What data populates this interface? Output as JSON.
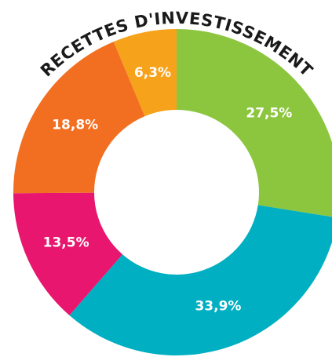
{
  "chart_data": {
    "type": "donut",
    "title": "RECETTES D'INVESTISSEMENT",
    "categories": [
      null,
      null,
      null,
      null,
      null
    ],
    "values": [
      27.5,
      33.9,
      13.5,
      18.8,
      6.3
    ],
    "value_labels": [
      "27,5%",
      "33,9%",
      "13,5%",
      "18,8%",
      "6,3%"
    ],
    "colors": [
      "#8cc63f",
      "#00afc1",
      "#e8166e",
      "#f26f21",
      "#f7a21b"
    ]
  }
}
